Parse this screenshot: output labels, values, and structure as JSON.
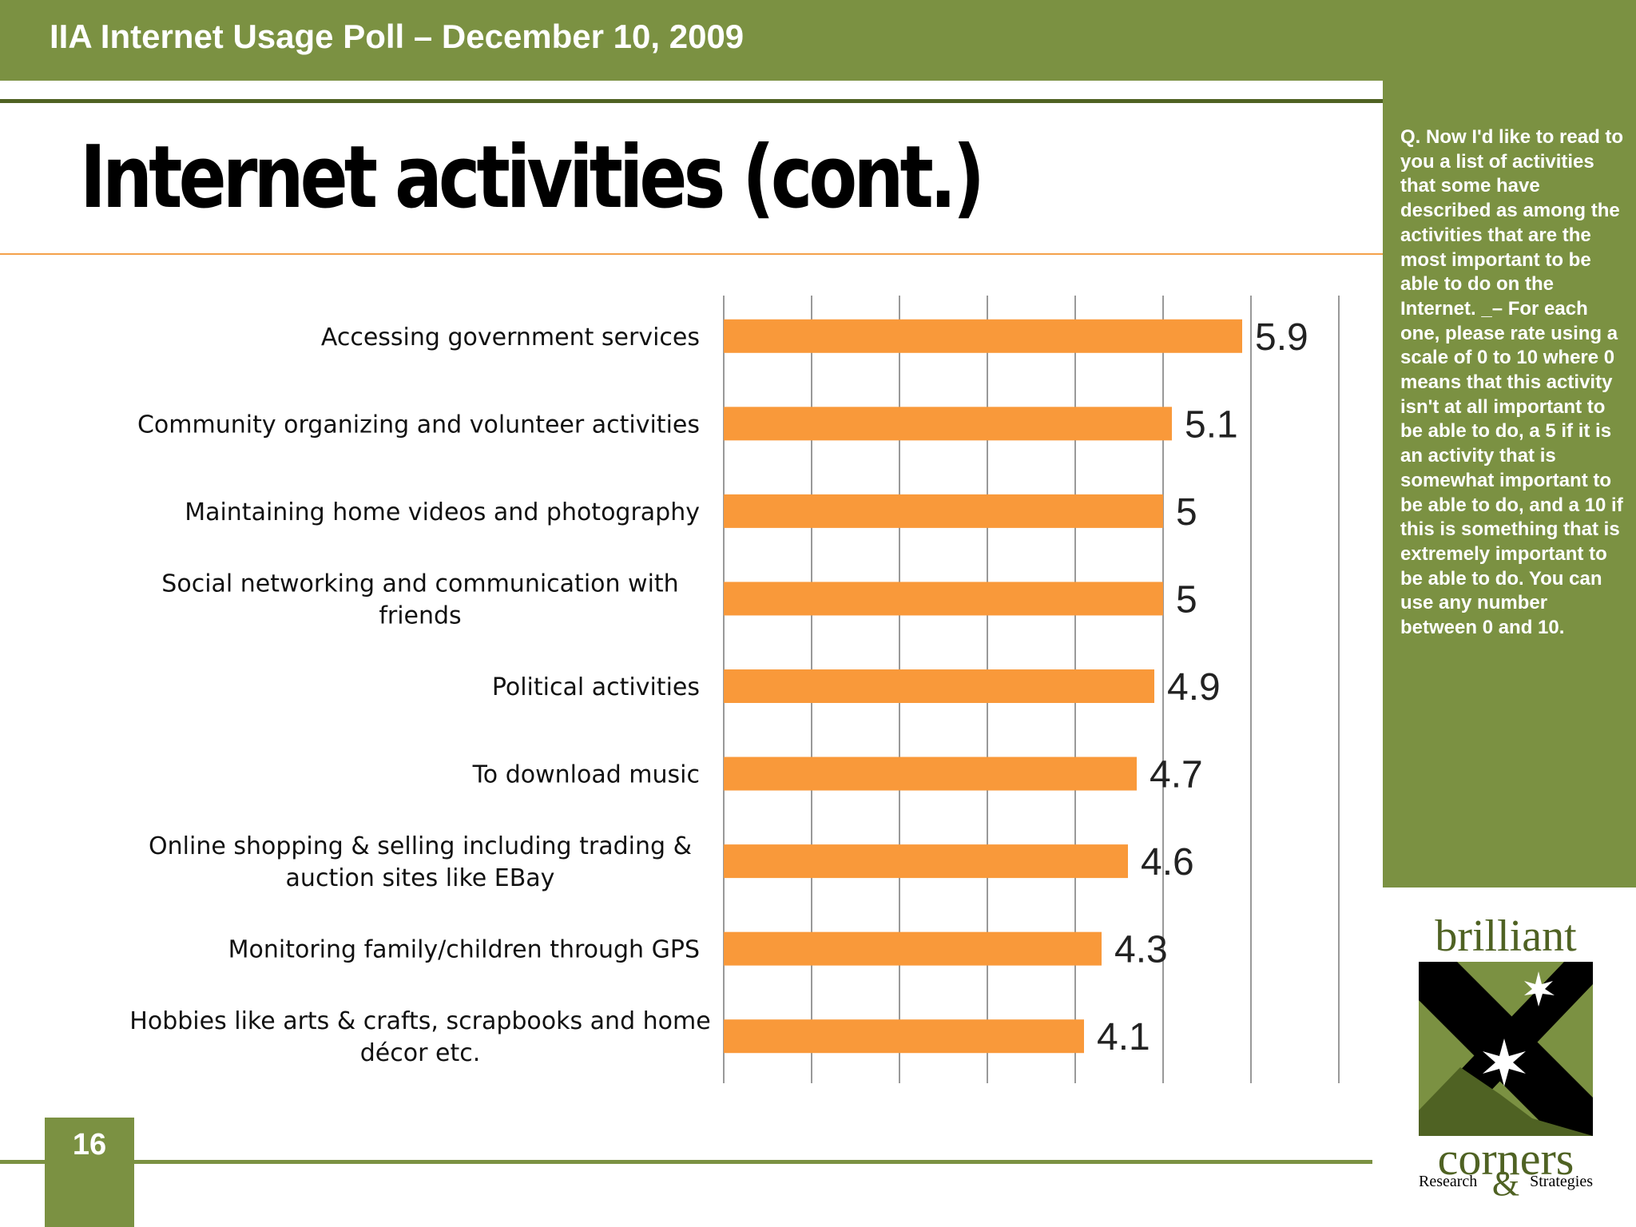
{
  "header": {
    "title": "IIA Internet Usage Poll – December 10, 2009"
  },
  "slide": {
    "title": "Internet activities  (cont.)",
    "page_number": "16"
  },
  "side_panel": {
    "question": "Q. Now I'd like to read to you a list of activities that some have described as among the activities that are the most important to be able to do on the Internet. _– For each one, please rate using a scale of 0 to 10 where 0 means that this activity isn't at all important to be able to do, a 5 if it is an activity that is somewhat important to be able to do, and a 10 if this is something that is extremely important to be able to do.  You can use any number between 0 and 10."
  },
  "chart_data": {
    "type": "bar",
    "orientation": "horizontal",
    "categories": [
      "Accessing government services",
      "Community organizing and volunteer activities",
      "Maintaining home videos and photography",
      "Social networking and communication with friends",
      "Political activities",
      "To download music",
      "Online shopping & selling including trading & auction sites like EBay",
      "Monitoring family/children through GPS",
      "Hobbies like arts & crafts, scrapbooks and home décor etc."
    ],
    "category_lines": [
      [
        "Accessing government services"
      ],
      [
        "Community organizing and volunteer activities"
      ],
      [
        "Maintaining home videos and photography"
      ],
      [
        "Social networking and communication with",
        "friends"
      ],
      [
        "Political activities"
      ],
      [
        "To download music"
      ],
      [
        "Online shopping & selling including trading &",
        "auction sites like EBay"
      ],
      [
        "Monitoring family/children through GPS"
      ],
      [
        "Hobbies like arts & crafts, scrapbooks and home",
        "décor etc."
      ]
    ],
    "values": [
      5.9,
      5.1,
      5,
      5,
      4.9,
      4.7,
      4.6,
      4.3,
      4.1
    ],
    "value_labels": [
      "5.9",
      "5.1",
      "5",
      "5",
      "4.9",
      "4.7",
      "4.6",
      "4.3",
      "4.1"
    ],
    "xlim": [
      0,
      7
    ],
    "grid": "vertical",
    "legend": "none",
    "bar_color": "#f9993a"
  },
  "logo": {
    "top_word": "brilliant",
    "bottom_word": "corners",
    "left_small": "Research",
    "ampersand": "&",
    "right_small": "Strategies",
    "colors": {
      "green": "#7b9142",
      "dark_green": "#4f6223",
      "black": "#000000"
    }
  },
  "colors": {
    "brand_green": "#7b9142",
    "dark_green": "#4f6223",
    "accent_orange": "#f9993a",
    "rule_orange": "#f4a14a"
  }
}
